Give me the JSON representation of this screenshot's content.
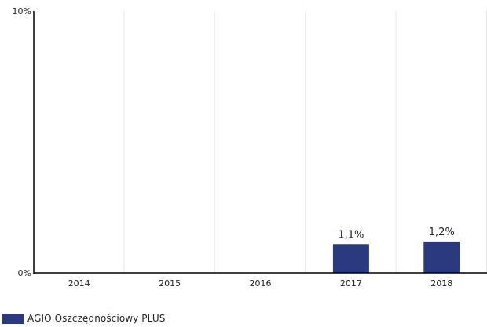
{
  "chart_data": {
    "type": "bar",
    "categories": [
      "2014",
      "2015",
      "2016",
      "2017",
      "2018"
    ],
    "series": [
      {
        "name": "AGIO Oszczędnościowy PLUS",
        "values": [
          null,
          null,
          null,
          1.1,
          1.2
        ]
      }
    ],
    "data_labels": [
      "",
      "",
      "",
      "1,1%",
      "1,2%"
    ],
    "y_ticks": [
      "0%",
      "10%"
    ],
    "ylim": [
      0,
      10
    ],
    "grid": "vertical",
    "legend_position": "bottom-left",
    "colors": {
      "bar": "#2b3a7e",
      "grid": "#e6e6e6",
      "axis": "#000000"
    }
  }
}
